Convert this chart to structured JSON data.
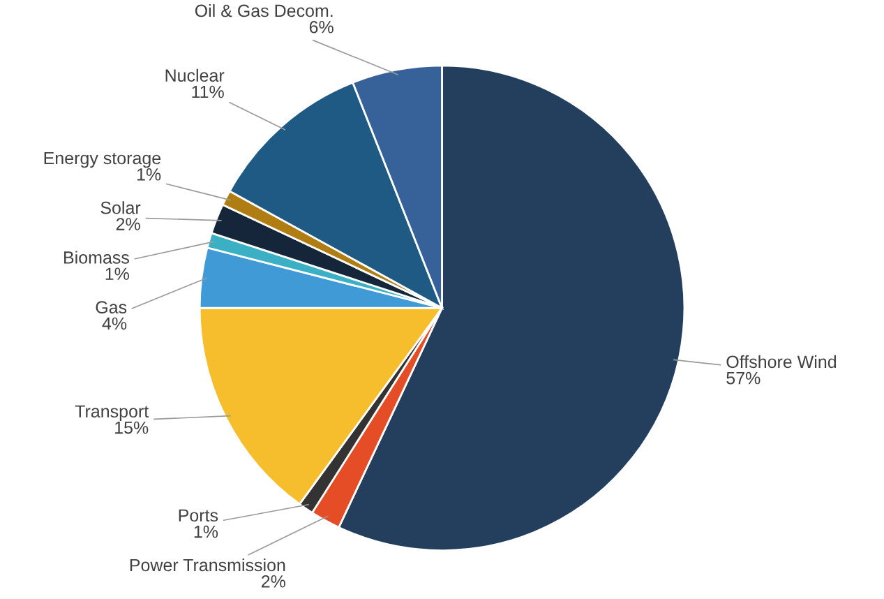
{
  "chart_data": {
    "type": "pie",
    "categories": [
      "Offshore Wind",
      "Power Transmission",
      "Ports",
      "Transport",
      "Gas",
      "Biomass",
      "Solar",
      "Energy storage",
      "Nuclear",
      "Oil & Gas Decom."
    ],
    "values": [
      57,
      2,
      1,
      15,
      4,
      1,
      2,
      1,
      11,
      6
    ],
    "value_labels": [
      "57%",
      "2%",
      "1%",
      "15%",
      "4%",
      "1%",
      "2%",
      "1%",
      "11%",
      "6%"
    ],
    "colors": [
      "#243f5e",
      "#e44d26",
      "#333333",
      "#f6bd2c",
      "#3f9ad6",
      "#3bb0c4",
      "#16263a",
      "#b07d12",
      "#1f5a85",
      "#376199"
    ],
    "legend": false
  }
}
